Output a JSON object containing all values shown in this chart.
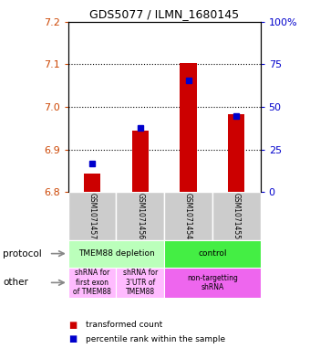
{
  "title": "GDS5077 / ILMN_1680145",
  "samples": [
    "GSM1071457",
    "GSM1071456",
    "GSM1071454",
    "GSM1071455"
  ],
  "red_values": [
    6.843,
    6.945,
    7.102,
    6.983
  ],
  "blue_values": [
    6.868,
    6.95,
    7.062,
    6.978
  ],
  "ylim": [
    6.8,
    7.2
  ],
  "yticks_left": [
    6.8,
    6.9,
    7.0,
    7.1,
    7.2
  ],
  "yticks_right": [
    0,
    25,
    50,
    75,
    100
  ],
  "dotted_lines": [
    6.9,
    7.0,
    7.1
  ],
  "protocol_row": [
    {
      "label": "TMEM88 depletion",
      "cols": [
        0,
        1
      ],
      "color": "#bbffbb"
    },
    {
      "label": "control",
      "cols": [
        2,
        3
      ],
      "color": "#44ee44"
    }
  ],
  "other_row": [
    {
      "label": "shRNA for\nfirst exon\nof TMEM88",
      "cols": [
        0
      ],
      "color": "#ffbbff"
    },
    {
      "label": "shRNA for\n3'UTR of\nTMEM88",
      "cols": [
        1
      ],
      "color": "#ffbbff"
    },
    {
      "label": "non-targetting\nshRNA",
      "cols": [
        2,
        3
      ],
      "color": "#ee66ee"
    }
  ],
  "legend_red": "transformed count",
  "legend_blue": "percentile rank within the sample",
  "bar_color": "#cc0000",
  "dot_color": "#0000cc",
  "tick_color_left": "#cc4400",
  "tick_color_right": "#0000cc",
  "sample_bg": "#cccccc",
  "protocol_label": "protocol",
  "other_label": "other"
}
